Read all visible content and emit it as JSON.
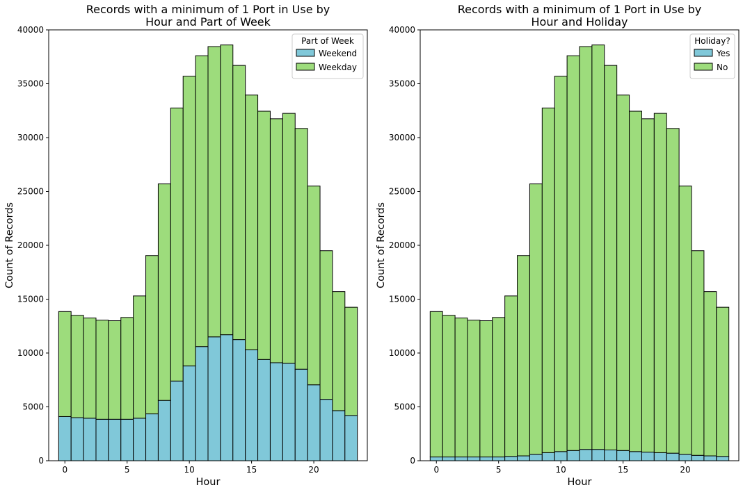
{
  "chart_data": [
    {
      "type": "bar",
      "stacked": true,
      "title": "Records with a minimum of 1 Port in Use by\nHour and Part of Week",
      "xlabel": "Hour",
      "ylabel": "Count of Records",
      "xlim": [
        -1.3,
        24.3
      ],
      "ylim": [
        0,
        40000
      ],
      "x_ticks": [
        0,
        5,
        10,
        15,
        20
      ],
      "y_ticks": [
        0,
        5000,
        10000,
        15000,
        20000,
        25000,
        30000,
        35000,
        40000
      ],
      "legend_title": "Part of Week",
      "legend_position": "top-right",
      "grid": false,
      "x": [
        0,
        1,
        2,
        3,
        4,
        5,
        6,
        7,
        8,
        9,
        10,
        11,
        12,
        13,
        14,
        15,
        16,
        17,
        18,
        19,
        20,
        21,
        22,
        23
      ],
      "series": [
        {
          "name": "Weekend",
          "color": "#80c8d9",
          "values": [
            4100,
            4000,
            3950,
            3850,
            3850,
            3850,
            3950,
            4350,
            5600,
            7400,
            8800,
            10600,
            11500,
            11700,
            11250,
            10300,
            9400,
            9100,
            9050,
            8500,
            7050,
            5700,
            4650,
            4200
          ]
        },
        {
          "name": "Weekday",
          "color": "#9ddc7c",
          "values": [
            9750,
            9500,
            9300,
            9200,
            9150,
            9450,
            11350,
            14700,
            20100,
            25350,
            26900,
            27000,
            26950,
            26900,
            25450,
            23650,
            23050,
            22650,
            23200,
            22350,
            18450,
            13800,
            11050,
            10050
          ]
        }
      ]
    },
    {
      "type": "bar",
      "stacked": true,
      "title": "Records with a minimum of 1 Port in Use by\nHour and Holiday",
      "xlabel": "Hour",
      "ylabel": "Count of Records",
      "xlim": [
        -1.3,
        24.3
      ],
      "ylim": [
        0,
        40000
      ],
      "x_ticks": [
        0,
        5,
        10,
        15,
        20
      ],
      "y_ticks": [
        0,
        5000,
        10000,
        15000,
        20000,
        25000,
        30000,
        35000,
        40000
      ],
      "legend_title": "Holiday?",
      "legend_position": "top-right",
      "grid": false,
      "x": [
        0,
        1,
        2,
        3,
        4,
        5,
        6,
        7,
        8,
        9,
        10,
        11,
        12,
        13,
        14,
        15,
        16,
        17,
        18,
        19,
        20,
        21,
        22,
        23
      ],
      "series": [
        {
          "name": "Yes",
          "color": "#80c8d9",
          "values": [
            350,
            350,
            350,
            350,
            350,
            350,
            400,
            450,
            600,
            750,
            850,
            950,
            1050,
            1050,
            1000,
            950,
            850,
            800,
            750,
            700,
            600,
            500,
            450,
            400
          ]
        },
        {
          "name": "No",
          "color": "#9ddc7c",
          "values": [
            13500,
            13150,
            12900,
            12700,
            12650,
            12950,
            14900,
            18600,
            25100,
            32000,
            34850,
            36650,
            37400,
            37550,
            35700,
            33000,
            31600,
            30950,
            31500,
            30150,
            24900,
            19000,
            15250,
            13850
          ]
        }
      ]
    }
  ]
}
